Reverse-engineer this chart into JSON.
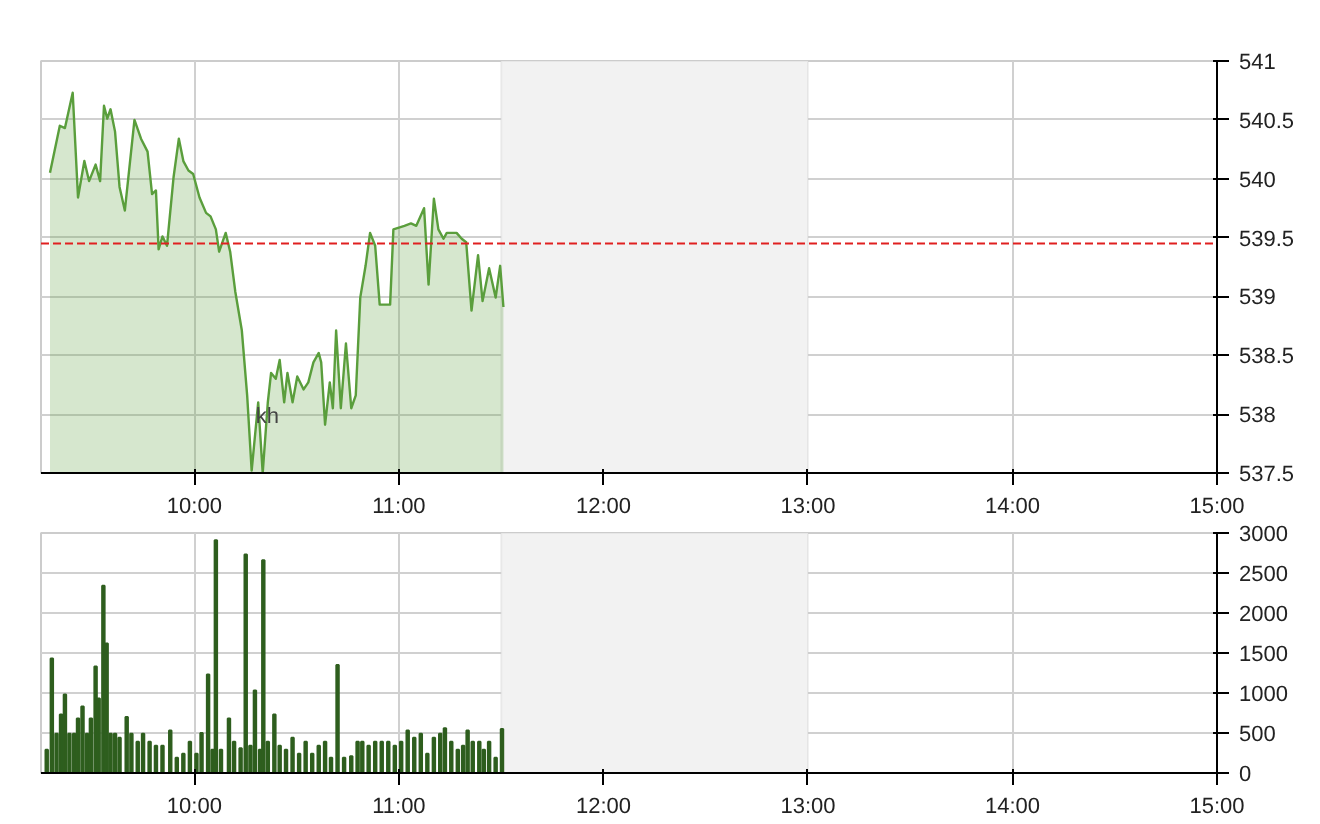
{
  "chart_data": [
    {
      "type": "area",
      "x": [
        9.294,
        9.342,
        9.367,
        9.405,
        9.431,
        9.462,
        9.485,
        9.517,
        9.539,
        9.558,
        9.574,
        9.59,
        9.612,
        9.634,
        9.66,
        9.707,
        9.739,
        9.771,
        9.793,
        9.812,
        9.825,
        9.844,
        9.866,
        9.898,
        9.924,
        9.946,
        9.971,
        9.994,
        10.025,
        10.057,
        10.079,
        10.105,
        10.121,
        10.153,
        10.175,
        10.2,
        10.232,
        10.258,
        10.28,
        10.312,
        10.334,
        10.359,
        10.375,
        10.398,
        10.417,
        10.439,
        10.455,
        10.48,
        10.503,
        10.534,
        10.557,
        10.582,
        10.608,
        10.62,
        10.639,
        10.662,
        10.677,
        10.693,
        10.716,
        10.741,
        10.767,
        10.789,
        10.811,
        10.837,
        10.859,
        10.884,
        10.906,
        10.932,
        10.957,
        10.973,
        11.027,
        11.059,
        11.085,
        11.123,
        11.145,
        11.171,
        11.193,
        11.218,
        11.234,
        11.282,
        11.307,
        11.329,
        11.355,
        11.387,
        11.409,
        11.441,
        11.473,
        11.495,
        11.511
      ],
      "series": [
        {
          "color": "#5a9e3c",
          "values": [
            540.05,
            540.45,
            540.43,
            540.73,
            539.84,
            540.15,
            539.98,
            540.12,
            539.98,
            540.62,
            540.51,
            540.59,
            540.4,
            539.93,
            539.73,
            540.5,
            540.34,
            540.23,
            539.87,
            539.9,
            539.4,
            539.51,
            539.43,
            540.01,
            540.34,
            540.15,
            540.07,
            540.04,
            539.84,
            539.71,
            539.68,
            539.57,
            539.38,
            539.54,
            539.38,
            539.04,
            538.71,
            538.16,
            537.52,
            538.1,
            537.5,
            538.1,
            538.35,
            538.3,
            538.46,
            538.1,
            538.35,
            538.1,
            538.32,
            538.21,
            538.27,
            538.44,
            538.52,
            538.44,
            537.91,
            538.27,
            538.05,
            538.71,
            538.05,
            538.6,
            538.05,
            538.16,
            538.99,
            539.26,
            539.54,
            539.43,
            538.93,
            538.93,
            538.93,
            539.57,
            539.6,
            539.62,
            539.6,
            539.75,
            539.1,
            539.83,
            539.57,
            539.49,
            539.54,
            539.54,
            539.49,
            539.46,
            538.88,
            539.35,
            538.96,
            539.24,
            538.99,
            539.26,
            538.91
          ]
        }
      ],
      "xlim": [
        9.25,
        15
      ],
      "xticks": [
        {
          "value": 10,
          "label": "10:00"
        },
        {
          "value": 11,
          "label": "11:00"
        },
        {
          "value": 12,
          "label": "12:00"
        },
        {
          "value": 13,
          "label": "13:00"
        },
        {
          "value": 14,
          "label": "14:00"
        },
        {
          "value": 15,
          "label": "15:00"
        }
      ],
      "ylim": [
        537.5,
        541
      ],
      "yticks": [
        537.5,
        538,
        538.5,
        539,
        539.5,
        540,
        540.5,
        541
      ],
      "ref_lines": [
        {
          "axis": "y",
          "value": 539.45,
          "color": "#e02020",
          "line_style": "dashed"
        }
      ],
      "bands": [
        {
          "axis": "x",
          "from": 11.5,
          "to": 13,
          "color": "#f2f2f2"
        }
      ],
      "annotations": [
        "kh"
      ],
      "grid": true
    },
    {
      "type": "bar",
      "x": [
        9.278,
        9.303,
        9.326,
        9.348,
        9.367,
        9.389,
        9.412,
        9.431,
        9.453,
        9.475,
        9.494,
        9.517,
        9.532,
        9.555,
        9.571,
        9.59,
        9.612,
        9.634,
        9.669,
        9.692,
        9.723,
        9.749,
        9.781,
        9.812,
        9.844,
        9.882,
        9.914,
        9.946,
        9.978,
        10.01,
        10.035,
        10.067,
        10.089,
        10.105,
        10.13,
        10.169,
        10.194,
        10.226,
        10.251,
        10.274,
        10.296,
        10.321,
        10.337,
        10.359,
        10.391,
        10.417,
        10.448,
        10.48,
        10.512,
        10.544,
        10.576,
        10.608,
        10.639,
        10.668,
        10.7,
        10.732,
        10.767,
        10.798,
        10.821,
        10.852,
        10.884,
        10.916,
        10.948,
        10.98,
        11.011,
        11.043,
        11.075,
        11.107,
        11.139,
        11.171,
        11.202,
        11.225,
        11.256,
        11.288,
        11.314,
        11.336,
        11.361,
        11.393,
        11.415,
        11.441,
        11.473,
        11.504
      ],
      "values": [
        290,
        1430,
        490,
        730,
        980,
        490,
        490,
        680,
        830,
        490,
        680,
        1330,
        930,
        2340,
        1620,
        490,
        490,
        440,
        700,
        490,
        390,
        490,
        390,
        340,
        340,
        530,
        190,
        240,
        390,
        240,
        500,
        1230,
        290,
        2910,
        290,
        680,
        390,
        310,
        2730,
        340,
        1030,
        290,
        2660,
        390,
        730,
        340,
        290,
        440,
        240,
        390,
        240,
        340,
        390,
        190,
        1350,
        190,
        210,
        390,
        390,
        340,
        390,
        390,
        390,
        340,
        390,
        530,
        440,
        490,
        240,
        440,
        490,
        560,
        390,
        290,
        340,
        530,
        390,
        390,
        290,
        390,
        190,
        550
      ],
      "color": "#2e5e1e",
      "xlim": [
        9.25,
        15
      ],
      "xticks": [
        {
          "value": 10,
          "label": "10:00"
        },
        {
          "value": 11,
          "label": "11:00"
        },
        {
          "value": 12,
          "label": "12:00"
        },
        {
          "value": 13,
          "label": "13:00"
        },
        {
          "value": 14,
          "label": "14:00"
        },
        {
          "value": 15,
          "label": "15:00"
        }
      ],
      "ylim": [
        0,
        3000
      ],
      "yticks": [
        0,
        500,
        1000,
        1500,
        2000,
        2500,
        3000
      ],
      "bands": [
        {
          "axis": "x",
          "from": 11.5,
          "to": 13,
          "color": "#f2f2f2"
        }
      ],
      "grid": true
    }
  ]
}
